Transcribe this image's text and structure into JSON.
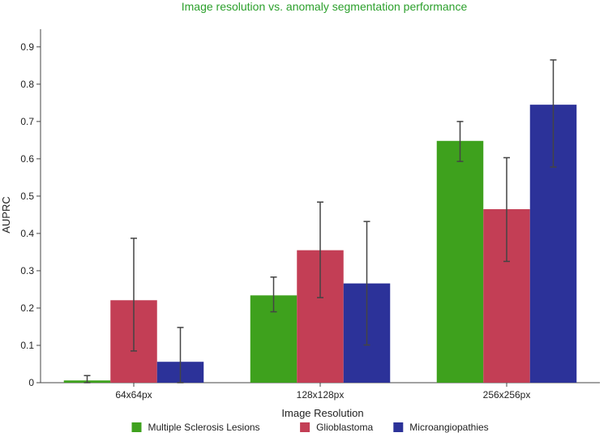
{
  "chart_data": {
    "type": "bar",
    "title": "Image resolution vs. anomaly segmentation performance",
    "title_color": "#2ca02c",
    "xlabel": "Image Resolution",
    "ylabel": "AUPRC",
    "categories": [
      "64x64px",
      "128x128px",
      "256x256px"
    ],
    "ylim": [
      0,
      0.93
    ],
    "yticks": [
      0,
      0.1,
      0.2,
      0.3,
      0.4,
      0.5,
      0.6,
      0.7,
      0.8,
      0.9
    ],
    "ytick_labels": [
      "0",
      "0.1",
      "0.2",
      "0.3",
      "0.4",
      "0.5",
      "0.6",
      "0.7",
      "0.8",
      "0.9"
    ],
    "grid": false,
    "legend_position": "bottom",
    "error_bar_color": "#444444",
    "series": [
      {
        "name": "Multiple Sclerosis Lesions",
        "color": "#3ea11d",
        "values": [
          0.006,
          0.234,
          0.648
        ],
        "err_low": [
          0.0,
          0.19,
          0.593
        ],
        "err_high": [
          0.019,
          0.283,
          0.7
        ]
      },
      {
        "name": "Glioblastoma",
        "color": "#c33e55",
        "values": [
          0.221,
          0.355,
          0.465
        ],
        "err_low": [
          0.085,
          0.228,
          0.325
        ],
        "err_high": [
          0.387,
          0.484,
          0.603
        ]
      },
      {
        "name": "Microangiopathies",
        "color": "#2c3299",
        "values": [
          0.056,
          0.266,
          0.745
        ],
        "err_low": [
          0.0,
          0.101,
          0.578
        ],
        "err_high": [
          0.148,
          0.432,
          0.865
        ]
      }
    ]
  }
}
